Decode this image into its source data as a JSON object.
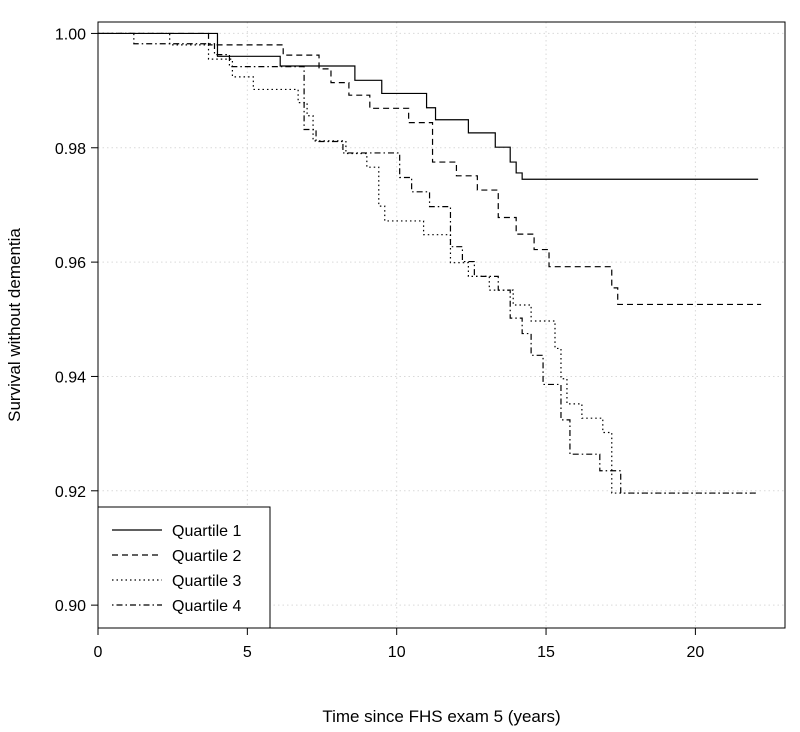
{
  "chart_data": {
    "type": "line",
    "title": "",
    "xlabel": "Time since FHS exam 5 (years)",
    "ylabel": "Survival without dementia",
    "xlim": [
      0,
      23
    ],
    "ylim": [
      0.896,
      1.002
    ],
    "x_ticks": [
      0,
      5,
      10,
      15,
      20
    ],
    "x_tick_labels": [
      "0",
      "5",
      "10",
      "15",
      "20"
    ],
    "y_ticks": [
      0.9,
      0.92,
      0.94,
      0.96,
      0.98,
      1.0
    ],
    "y_tick_labels": [
      "0.90",
      "0.92",
      "0.94",
      "0.96",
      "0.98",
      "1.00"
    ],
    "grid": true,
    "legend_position": "bottom-left",
    "series": [
      {
        "name": "Quartile 1",
        "line_style": "solid",
        "color": "#000000",
        "x": [
          0,
          4.0,
          6.1,
          8.2,
          8.6,
          9.5,
          10.4,
          11.0,
          11.3,
          12.4,
          13.3,
          13.8,
          14.0,
          14.2,
          22.1
        ],
        "y": [
          1.0,
          0.996,
          0.9943,
          0.9943,
          0.9918,
          0.9895,
          0.9895,
          0.987,
          0.9849,
          0.9826,
          0.9801,
          0.9775,
          0.9756,
          0.9745,
          0.9745
        ]
      },
      {
        "name": "Quartile 2",
        "line_style": "dashed",
        "color": "#000000",
        "x": [
          0,
          3.7,
          6.2,
          7.4,
          7.8,
          8.4,
          9.1,
          10.4,
          11.2,
          12.0,
          12.7,
          13.4,
          14.0,
          14.6,
          15.1,
          17.2,
          17.4,
          22.2
        ],
        "y": [
          1.0,
          0.998,
          0.9962,
          0.9938,
          0.9914,
          0.9892,
          0.9869,
          0.9844,
          0.9775,
          0.9751,
          0.9726,
          0.9678,
          0.9649,
          0.9622,
          0.9592,
          0.9555,
          0.9526,
          0.9526
        ]
      },
      {
        "name": "Quartile 3",
        "line_style": "dotted",
        "color": "#000000",
        "x": [
          0,
          2.4,
          3.7,
          4.5,
          5.2,
          6.7,
          7.0,
          7.2,
          8.3,
          9.0,
          9.4,
          9.6,
          10.9,
          11.8,
          12.4,
          13.1,
          13.9,
          14.5,
          15.3,
          15.5,
          15.7,
          16.2,
          16.9,
          17.2,
          22.0
        ],
        "y": [
          1.0,
          0.998,
          0.9955,
          0.9924,
          0.9902,
          0.9879,
          0.9856,
          0.9812,
          0.979,
          0.9766,
          0.9698,
          0.9672,
          0.9648,
          0.9599,
          0.9575,
          0.9551,
          0.9525,
          0.9497,
          0.9449,
          0.9396,
          0.9352,
          0.9327,
          0.9302,
          0.9196,
          0.9196
        ]
      },
      {
        "name": "Quartile 4",
        "line_style": "dotdash",
        "color": "#000000",
        "x": [
          0,
          1.2,
          3.9,
          4.4,
          6.9,
          7.3,
          8.2,
          10.1,
          10.5,
          11.1,
          11.8,
          12.2,
          12.6,
          13.4,
          13.8,
          14.2,
          14.5,
          14.9,
          15.5,
          15.8,
          16.8,
          17.5,
          22.1
        ],
        "y": [
          1.0,
          0.9982,
          0.9963,
          0.9942,
          0.9832,
          0.9811,
          0.9791,
          0.9748,
          0.9723,
          0.9697,
          0.9627,
          0.9601,
          0.9575,
          0.9551,
          0.9502,
          0.9475,
          0.9437,
          0.9386,
          0.9324,
          0.9264,
          0.9235,
          0.9196,
          0.9196
        ]
      }
    ]
  }
}
